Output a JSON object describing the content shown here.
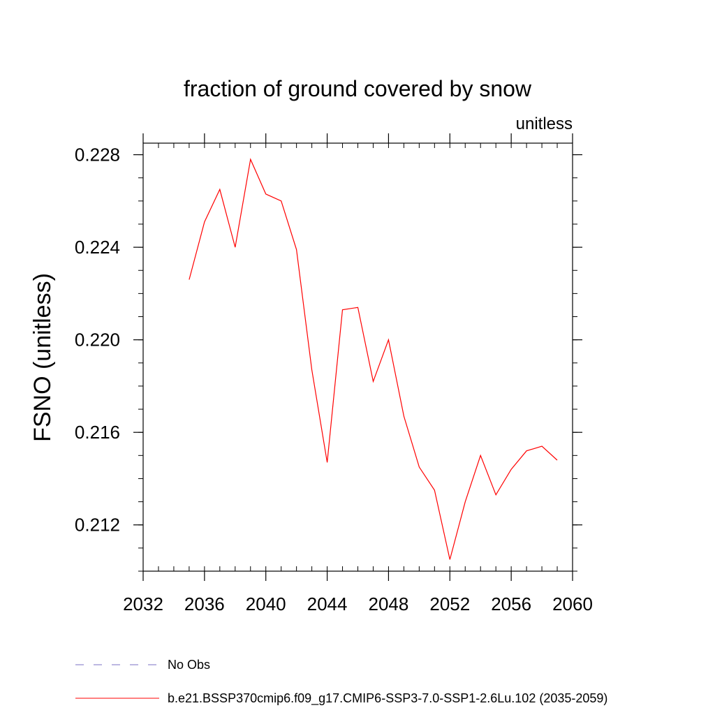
{
  "chart_data": {
    "type": "line",
    "title": "fraction of ground covered by snow",
    "units_label": "unitless",
    "ylabel": "FSNO  (unitless)",
    "xlabel": "",
    "xlim": [
      2032,
      2060
    ],
    "ylim": [
      0.21,
      0.2285
    ],
    "x_ticks": [
      2032,
      2036,
      2040,
      2044,
      2048,
      2052,
      2056,
      2060
    ],
    "y_ticks": [
      0.212,
      0.216,
      0.22,
      0.224,
      0.228
    ],
    "y_tick_labels": [
      "0.212",
      "0.216",
      "0.220",
      "0.224",
      "0.228"
    ],
    "x_minor_step": 1,
    "y_minor_step": 0.001,
    "grid": false,
    "legend_position": "bottom",
    "series": [
      {
        "name": "b.e21.BSSP370cmip6.f09_g17.CMIP6-SSP3-7.0-SSP1-2.6Lu.102 (2035-2059)",
        "color": "#ff0000",
        "style": "solid",
        "x": [
          2035,
          2036,
          2037,
          2038,
          2039,
          2040,
          2041,
          2042,
          2043,
          2044,
          2045,
          2046,
          2047,
          2048,
          2049,
          2050,
          2051,
          2052,
          2053,
          2054,
          2055,
          2056,
          2057,
          2058,
          2059
        ],
        "values": [
          0.2226,
          0.2251,
          0.2265,
          0.224,
          0.2278,
          0.2263,
          0.226,
          0.2239,
          0.2187,
          0.2147,
          0.2213,
          0.2214,
          0.2182,
          0.22,
          0.2167,
          0.2145,
          0.2135,
          0.2105,
          0.213,
          0.215,
          0.2133,
          0.2144,
          0.2152,
          0.2154,
          0.2148
        ]
      }
    ],
    "legend": [
      {
        "label": "No Obs",
        "color": "#7a6fc4",
        "style": "dashed"
      },
      {
        "label": "b.e21.BSSP370cmip6.f09_g17.CMIP6-SSP3-7.0-SSP1-2.6Lu.102 (2035-2059)",
        "color": "#ff0000",
        "style": "solid"
      }
    ]
  }
}
